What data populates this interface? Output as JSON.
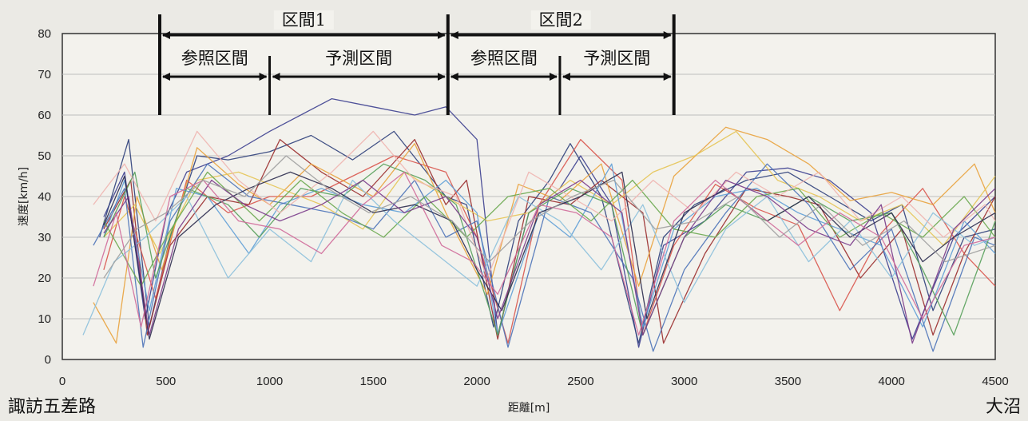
{
  "chart_data": {
    "type": "line",
    "xlabel": "距離[m]",
    "ylabel": "速度[km/h]",
    "xlim": [
      0,
      4500
    ],
    "ylim": [
      0,
      80
    ],
    "x_ticks": [
      0,
      500,
      1000,
      1500,
      2000,
      2500,
      3000,
      3500,
      4000,
      4500
    ],
    "y_ticks": [
      0,
      10,
      20,
      30,
      40,
      50,
      60,
      70,
      80
    ],
    "grid": "horizontal",
    "start_label": "諏訪五差路",
    "end_label": "大沼",
    "sections": [
      {
        "label": "区間1",
        "x_start": 470,
        "x_end": 1860,
        "reference": {
          "label": "参照区間",
          "x_start": 470,
          "x_end": 1000
        },
        "prediction": {
          "label": "予測区間",
          "x_start": 1000,
          "x_end": 1860
        }
      },
      {
        "label": "区間2",
        "x_start": 1860,
        "x_end": 2950,
        "reference": {
          "label": "参照区間",
          "x_start": 1860,
          "x_end": 2400
        },
        "prediction": {
          "label": "予測区間",
          "x_start": 2400,
          "x_end": 2950
        }
      }
    ],
    "series": [
      {
        "color": "#3c3f8f",
        "x": [
          200,
          300,
          400,
          500,
          600,
          800,
          1000,
          1300,
          1500,
          1700,
          1850,
          2000,
          2100,
          2250,
          2400,
          2500,
          2650,
          2780,
          2900,
          3100,
          3300,
          3500,
          3700,
          3900,
          4100,
          4300,
          4500
        ],
        "y": [
          35,
          46,
          10,
          35,
          46,
          50,
          56,
          64,
          62,
          60,
          62,
          54,
          6,
          36,
          42,
          50,
          38,
          3,
          28,
          34,
          46,
          47,
          44,
          36,
          5,
          30,
          40
        ]
      },
      {
        "color": "#2e3f7a",
        "x": [
          180,
          320,
          420,
          520,
          650,
          800,
          1000,
          1200,
          1400,
          1600,
          1850,
          1950,
          2080,
          2200,
          2350,
          2450,
          2600,
          2780,
          2900,
          3050,
          3300,
          3500,
          3700,
          3900,
          4050,
          4200,
          4350,
          4500
        ],
        "y": [
          30,
          54,
          8,
          30,
          50,
          49,
          51,
          55,
          49,
          56,
          40,
          38,
          8,
          34,
          44,
          53,
          40,
          4,
          30,
          38,
          44,
          46,
          40,
          34,
          38,
          12,
          30,
          32
        ]
      },
      {
        "color": "#9a2c2c",
        "x": [
          200,
          330,
          410,
          520,
          700,
          900,
          1050,
          1250,
          1450,
          1700,
          1850,
          1950,
          2100,
          2250,
          2450,
          2600,
          2800,
          2900,
          3100,
          3300,
          3500,
          3650,
          3850,
          4050,
          4200,
          4350,
          4500
        ],
        "y": [
          32,
          44,
          6,
          28,
          40,
          38,
          54,
          46,
          40,
          54,
          38,
          44,
          5,
          40,
          38,
          44,
          36,
          4,
          26,
          42,
          40,
          38,
          20,
          32,
          6,
          26,
          40
        ]
      },
      {
        "color": "#d9554c",
        "x": [
          200,
          300,
          450,
          600,
          800,
          1000,
          1200,
          1400,
          1600,
          1850,
          2000,
          2150,
          2300,
          2500,
          2700,
          2800,
          2950,
          3150,
          3350,
          3550,
          3750,
          3950,
          4150,
          4350,
          4500
        ],
        "y": [
          22,
          40,
          15,
          44,
          36,
          40,
          40,
          45,
          50,
          46,
          30,
          4,
          38,
          54,
          44,
          6,
          28,
          43,
          37,
          33,
          12,
          31,
          42,
          26,
          18
        ]
      },
      {
        "color": "#e9a23c",
        "x": [
          150,
          260,
          360,
          480,
          650,
          850,
          1000,
          1200,
          1500,
          1700,
          1850,
          2050,
          2200,
          2400,
          2600,
          2780,
          2950,
          3200,
          3400,
          3600,
          3800,
          4000,
          4200,
          4400,
          4500
        ],
        "y": [
          14,
          4,
          40,
          22,
          52,
          43,
          38,
          48,
          40,
          53,
          36,
          16,
          43,
          39,
          48,
          18,
          45,
          57,
          54,
          48,
          39,
          41,
          38,
          48,
          36
        ]
      },
      {
        "color": "#e5c454",
        "x": [
          200,
          350,
          470,
          650,
          850,
          1050,
          1250,
          1450,
          1650,
          1850,
          2050,
          2250,
          2450,
          2650,
          2850,
          3050,
          3250,
          3450,
          3650,
          3850,
          4050,
          4250,
          4500
        ],
        "y": [
          30,
          38,
          26,
          44,
          46,
          42,
          38,
          32,
          46,
          40,
          34,
          36,
          44,
          38,
          46,
          50,
          56,
          44,
          40,
          34,
          38,
          28,
          45
        ]
      },
      {
        "color": "#5f9fd6",
        "x": [
          200,
          300,
          420,
          550,
          700,
          900,
          1050,
          1250,
          1450,
          1650,
          1850,
          2000,
          2100,
          2300,
          2450,
          2650,
          2800,
          2950,
          3150,
          3350,
          3550,
          3750,
          3950,
          4150,
          4350,
          4500
        ],
        "y": [
          30,
          44,
          12,
          42,
          40,
          26,
          38,
          42,
          38,
          36,
          44,
          36,
          6,
          36,
          30,
          48,
          8,
          32,
          40,
          42,
          36,
          32,
          28,
          8,
          34,
          26
        ]
      },
      {
        "color": "#4d73b8",
        "x": [
          150,
          300,
          390,
          520,
          700,
          900,
          1100,
          1300,
          1500,
          1700,
          1850,
          2000,
          2150,
          2350,
          2550,
          2750,
          2850,
          3000,
          3200,
          3400,
          3600,
          3800,
          4000,
          4200,
          4400,
          4500
        ],
        "y": [
          28,
          42,
          3,
          34,
          48,
          40,
          38,
          36,
          32,
          44,
          30,
          34,
          3,
          40,
          36,
          20,
          2,
          22,
          36,
          48,
          38,
          22,
          32,
          2,
          30,
          28
        ]
      },
      {
        "color": "#56a05a",
        "x": [
          200,
          350,
          450,
          600,
          800,
          950,
          1150,
          1350,
          1550,
          1750,
          1900,
          2100,
          2250,
          2450,
          2650,
          2800,
          3000,
          3200,
          3400,
          3600,
          3800,
          4000,
          4150,
          4300,
          4500
        ],
        "y": [
          30,
          46,
          20,
          42,
          38,
          30,
          42,
          40,
          48,
          44,
          38,
          6,
          36,
          42,
          38,
          6,
          30,
          38,
          34,
          40,
          34,
          36,
          22,
          6,
          34
        ]
      },
      {
        "color": "#6aa84f",
        "x": [
          200,
          380,
          500,
          700,
          950,
          1150,
          1350,
          1550,
          1750,
          1950,
          2150,
          2350,
          2550,
          2750,
          2950,
          3150,
          3350,
          3550,
          3750,
          3950,
          4150,
          4350,
          4500
        ],
        "y": [
          34,
          18,
          30,
          46,
          34,
          44,
          36,
          30,
          40,
          30,
          40,
          42,
          34,
          44,
          32,
          30,
          40,
          42,
          30,
          36,
          30,
          40,
          30
        ]
      },
      {
        "color": "#8cc0dc",
        "x": [
          100,
          250,
          400,
          600,
          800,
          1000,
          1200,
          1400,
          1600,
          1800,
          2000,
          2200,
          2400,
          2600,
          2800,
          3000,
          3200,
          3400,
          3600,
          3800,
          4000,
          4200,
          4400,
          4500
        ],
        "y": [
          6,
          24,
          30,
          40,
          20,
          32,
          24,
          44,
          34,
          26,
          18,
          40,
          34,
          22,
          38,
          14,
          32,
          40,
          24,
          34,
          20,
          36,
          28,
          30
        ]
      },
      {
        "color": "#f0b5b0",
        "x": [
          150,
          300,
          450,
          650,
          850,
          1050,
          1300,
          1500,
          1700,
          1900,
          2050,
          2250,
          2450,
          2650,
          2850,
          3050,
          3250,
          3450,
          3650,
          3850,
          4050,
          4250,
          4450,
          4500
        ],
        "y": [
          38,
          48,
          34,
          56,
          44,
          36,
          46,
          56,
          44,
          40,
          20,
          46,
          40,
          34,
          44,
          36,
          46,
          40,
          46,
          34,
          40,
          30,
          38,
          34
        ]
      },
      {
        "color": "#2b2b4e",
        "x": [
          200,
          300,
          420,
          560,
          740,
          900,
          1100,
          1300,
          1500,
          1700,
          1880,
          2000,
          2120,
          2300,
          2500,
          2700,
          2820,
          3000,
          3200,
          3400,
          3600,
          3800,
          4000,
          4150,
          4300,
          4500
        ],
        "y": [
          33,
          45,
          5,
          30,
          38,
          42,
          46,
          42,
          36,
          38,
          34,
          22,
          12,
          36,
          40,
          46,
          10,
          36,
          42,
          34,
          40,
          30,
          36,
          24,
          30,
          36
        ]
      },
      {
        "color": "#7a3b8a",
        "x": [
          200,
          320,
          420,
          560,
          720,
          880,
          1050,
          1250,
          1450,
          1650,
          1850,
          2000,
          2100,
          2300,
          2500,
          2700,
          2800,
          3000,
          3200,
          3400,
          3600,
          3800,
          3950,
          4100,
          4300,
          4500
        ],
        "y": [
          31,
          40,
          6,
          32,
          44,
          38,
          34,
          38,
          44,
          36,
          40,
          30,
          10,
          38,
          44,
          36,
          6,
          30,
          44,
          40,
          32,
          28,
          38,
          4,
          32,
          42
        ]
      },
      {
        "color": "#d06b9a",
        "x": [
          150,
          260,
          380,
          520,
          680,
          850,
          1050,
          1250,
          1450,
          1650,
          1830,
          1980,
          2100,
          2300,
          2480,
          2650,
          2780,
          2950,
          3150,
          3350,
          3550,
          3750,
          3950,
          4150,
          4350,
          4500
        ],
        "y": [
          18,
          36,
          8,
          40,
          44,
          34,
          32,
          26,
          38,
          46,
          28,
          24,
          16,
          38,
          36,
          30,
          6,
          34,
          44,
          36,
          28,
          36,
          30,
          10,
          28,
          30
        ]
      },
      {
        "color": "#a0a0a0",
        "x": [
          200,
          360,
          500,
          680,
          880,
          1080,
          1280,
          1480,
          1680,
          1880,
          2060,
          2260,
          2460,
          2660,
          2860,
          3060,
          3260,
          3460,
          3660,
          3860,
          4060,
          4260,
          4500
        ],
        "y": [
          20,
          32,
          36,
          44,
          40,
          50,
          42,
          36,
          40,
          34,
          24,
          34,
          40,
          44,
          32,
          34,
          40,
          30,
          38,
          28,
          34,
          24,
          28
        ]
      }
    ]
  }
}
